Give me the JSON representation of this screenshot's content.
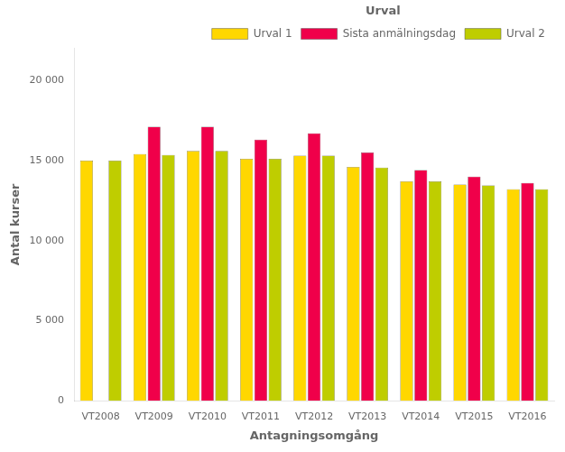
{
  "chart_data": {
    "type": "bar",
    "title": "Urval",
    "xlabel": "Antagningsomgång",
    "ylabel": "Antal kurser",
    "categories": [
      "VT2008",
      "VT2009",
      "VT2010",
      "VT2011",
      "VT2012",
      "VT2013",
      "VT2014",
      "VT2015",
      "VT2016"
    ],
    "series": [
      {
        "name": "Urval 1",
        "color": "#FFD700",
        "values": [
          15000,
          15400,
          15600,
          15100,
          15300,
          14600,
          13700,
          13500,
          13200
        ]
      },
      {
        "name": "Sista anmälningsdag",
        "color": "#F0004A",
        "values": [
          null,
          17100,
          17100,
          16300,
          16700,
          15500,
          14400,
          14000,
          13600
        ]
      },
      {
        "name": "Urval 2",
        "color": "#BFCD00",
        "values": [
          15000,
          15350,
          15600,
          15100,
          15300,
          14550,
          13700,
          13450,
          13200
        ]
      }
    ],
    "ylim": [
      0,
      22000
    ],
    "yticks": [
      0,
      {
        "value": 5000,
        "label": "5 000"
      },
      {
        "value": 10000,
        "label": "10 000"
      },
      {
        "value": 15000,
        "label": "15 000"
      },
      {
        "value": 20000,
        "label": "20 000"
      }
    ],
    "grid": false,
    "legend": "upper right"
  }
}
